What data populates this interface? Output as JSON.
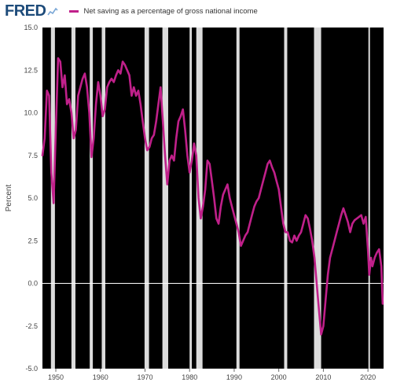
{
  "header": {
    "logo": "FRED",
    "logo_icon": "line-chart-icon",
    "legend_label": "Net saving as a percentage of gross national income",
    "legend_color": "#c0208a"
  },
  "chart_data": {
    "type": "line",
    "title": "",
    "xlabel": "",
    "ylabel": "Percent",
    "xlim": [
      1947,
      2023.5
    ],
    "ylim": [
      -5.0,
      15.0
    ],
    "y_ticks": [
      "15.0",
      "12.5",
      "10.0",
      "7.5",
      "5.0",
      "2.5",
      "0.0",
      "-2.5",
      "-5.0"
    ],
    "x_ticks": [
      "1950",
      "1960",
      "1970",
      "1980",
      "1990",
      "2000",
      "2010",
      "2020"
    ],
    "recession_bands": [
      [
        1948.9,
        1949.8
      ],
      [
        1953.5,
        1954.4
      ],
      [
        1957.6,
        1958.3
      ],
      [
        1960.3,
        1961.1
      ],
      [
        1969.9,
        1970.9
      ],
      [
        1973.9,
        1975.2
      ],
      [
        1980.0,
        1980.5
      ],
      [
        1981.5,
        1982.9
      ],
      [
        1990.5,
        1991.2
      ],
      [
        2001.2,
        2001.9
      ],
      [
        2007.9,
        2009.5
      ],
      [
        2020.1,
        2020.4
      ]
    ],
    "grid": false,
    "zero_line": true,
    "plot_background": "#000000",
    "band_color": "#dcdcdc",
    "series": [
      {
        "color": "#c0208a",
        "points": [
          [
            1947.0,
            7.5
          ],
          [
            1947.5,
            8.5
          ],
          [
            1948.0,
            11.3
          ],
          [
            1948.5,
            11.0
          ],
          [
            1949.0,
            6.5
          ],
          [
            1949.5,
            4.7
          ],
          [
            1950.0,
            9.0
          ],
          [
            1950.5,
            13.2
          ],
          [
            1951.0,
            13.0
          ],
          [
            1951.5,
            11.5
          ],
          [
            1952.0,
            12.2
          ],
          [
            1952.5,
            10.5
          ],
          [
            1953.0,
            10.8
          ],
          [
            1953.5,
            10.0
          ],
          [
            1954.0,
            8.5
          ],
          [
            1954.5,
            9.0
          ],
          [
            1955.0,
            11.0
          ],
          [
            1955.5,
            11.5
          ],
          [
            1956.0,
            12.0
          ],
          [
            1956.5,
            12.3
          ],
          [
            1957.0,
            11.5
          ],
          [
            1957.5,
            10.0
          ],
          [
            1958.0,
            7.4
          ],
          [
            1958.5,
            8.5
          ],
          [
            1959.0,
            10.5
          ],
          [
            1959.5,
            11.8
          ],
          [
            1960.0,
            11.0
          ],
          [
            1960.5,
            9.8
          ],
          [
            1961.0,
            10.2
          ],
          [
            1961.5,
            11.5
          ],
          [
            1962.0,
            11.8
          ],
          [
            1962.5,
            12.0
          ],
          [
            1963.0,
            11.8
          ],
          [
            1963.5,
            12.2
          ],
          [
            1964.0,
            12.5
          ],
          [
            1964.5,
            12.3
          ],
          [
            1965.0,
            13.0
          ],
          [
            1965.5,
            12.8
          ],
          [
            1966.0,
            12.5
          ],
          [
            1966.5,
            12.2
          ],
          [
            1967.0,
            11.0
          ],
          [
            1967.5,
            11.5
          ],
          [
            1968.0,
            11.0
          ],
          [
            1968.5,
            11.3
          ],
          [
            1969.0,
            10.5
          ],
          [
            1969.5,
            9.5
          ],
          [
            1970.0,
            8.5
          ],
          [
            1970.5,
            7.8
          ],
          [
            1971.0,
            8.0
          ],
          [
            1971.5,
            8.5
          ],
          [
            1972.0,
            8.7
          ],
          [
            1972.5,
            9.5
          ],
          [
            1973.0,
            10.5
          ],
          [
            1973.5,
            11.5
          ],
          [
            1974.0,
            9.5
          ],
          [
            1974.5,
            7.5
          ],
          [
            1975.0,
            5.8
          ],
          [
            1975.5,
            7.2
          ],
          [
            1976.0,
            7.5
          ],
          [
            1976.5,
            7.2
          ],
          [
            1977.0,
            8.5
          ],
          [
            1977.5,
            9.5
          ],
          [
            1978.0,
            9.8
          ],
          [
            1978.5,
            10.2
          ],
          [
            1979.0,
            9.0
          ],
          [
            1979.5,
            7.5
          ],
          [
            1980.0,
            6.5
          ],
          [
            1980.5,
            7.2
          ],
          [
            1981.0,
            8.2
          ],
          [
            1981.5,
            7.5
          ],
          [
            1982.0,
            5.0
          ],
          [
            1982.5,
            3.8
          ],
          [
            1983.0,
            4.5
          ],
          [
            1983.5,
            5.5
          ],
          [
            1984.0,
            7.2
          ],
          [
            1984.5,
            7.0
          ],
          [
            1985.0,
            6.0
          ],
          [
            1985.5,
            5.0
          ],
          [
            1986.0,
            3.8
          ],
          [
            1986.5,
            3.5
          ],
          [
            1987.0,
            4.5
          ],
          [
            1987.5,
            5.2
          ],
          [
            1988.0,
            5.5
          ],
          [
            1988.5,
            5.8
          ],
          [
            1989.0,
            5.0
          ],
          [
            1989.5,
            4.5
          ],
          [
            1990.0,
            4.0
          ],
          [
            1990.5,
            3.5
          ],
          [
            1991.0,
            3.0
          ],
          [
            1991.5,
            2.2
          ],
          [
            1992.0,
            2.5
          ],
          [
            1992.5,
            2.8
          ],
          [
            1993.0,
            3.0
          ],
          [
            1993.5,
            3.5
          ],
          [
            1994.0,
            4.0
          ],
          [
            1994.5,
            4.5
          ],
          [
            1995.0,
            4.8
          ],
          [
            1995.5,
            5.0
          ],
          [
            1996.0,
            5.5
          ],
          [
            1996.5,
            6.0
          ],
          [
            1997.0,
            6.5
          ],
          [
            1997.5,
            7.0
          ],
          [
            1998.0,
            7.2
          ],
          [
            1998.5,
            6.8
          ],
          [
            1999.0,
            6.5
          ],
          [
            1999.5,
            6.0
          ],
          [
            2000.0,
            5.5
          ],
          [
            2000.5,
            4.5
          ],
          [
            2001.0,
            3.5
          ],
          [
            2001.5,
            3.0
          ],
          [
            2002.0,
            3.0
          ],
          [
            2002.5,
            2.5
          ],
          [
            2003.0,
            2.4
          ],
          [
            2003.5,
            2.8
          ],
          [
            2004.0,
            2.5
          ],
          [
            2004.5,
            2.8
          ],
          [
            2005.0,
            3.0
          ],
          [
            2005.5,
            3.5
          ],
          [
            2006.0,
            4.0
          ],
          [
            2006.5,
            3.8
          ],
          [
            2007.0,
            3.2
          ],
          [
            2007.5,
            2.5
          ],
          [
            2008.0,
            1.5
          ],
          [
            2008.5,
            0.0
          ],
          [
            2009.0,
            -1.5
          ],
          [
            2009.5,
            -3.0
          ],
          [
            2010.0,
            -2.5
          ],
          [
            2010.5,
            -1.0
          ],
          [
            2011.0,
            0.5
          ],
          [
            2011.5,
            1.5
          ],
          [
            2012.0,
            2.0
          ],
          [
            2012.5,
            2.5
          ],
          [
            2013.0,
            3.0
          ],
          [
            2013.5,
            3.5
          ],
          [
            2014.0,
            4.0
          ],
          [
            2014.5,
            4.4
          ],
          [
            2015.0,
            4.0
          ],
          [
            2015.5,
            3.6
          ],
          [
            2016.0,
            3.0
          ],
          [
            2016.5,
            3.5
          ],
          [
            2017.0,
            3.7
          ],
          [
            2017.5,
            3.8
          ],
          [
            2018.0,
            3.9
          ],
          [
            2018.5,
            4.0
          ],
          [
            2019.0,
            3.5
          ],
          [
            2019.5,
            3.9
          ],
          [
            2020.0,
            2.0
          ],
          [
            2020.3,
            0.5
          ],
          [
            2020.7,
            1.5
          ],
          [
            2021.0,
            1.0
          ],
          [
            2021.5,
            1.5
          ],
          [
            2022.0,
            1.8
          ],
          [
            2022.5,
            2.0
          ],
          [
            2023.0,
            1.0
          ],
          [
            2023.3,
            -1.2
          ]
        ]
      }
    ]
  }
}
